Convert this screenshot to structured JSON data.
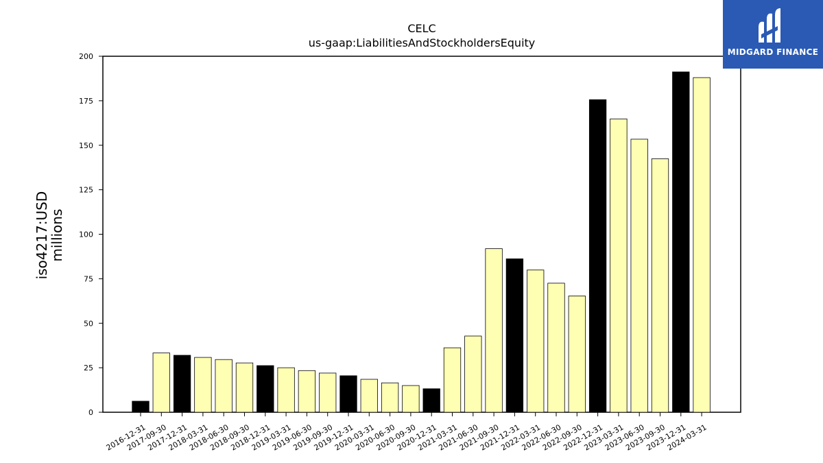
{
  "title_line1": "CELC",
  "title_line2": "us-gaap:LiabilitiesAndStockholdersEquity",
  "ylabel_line1": "iso4217:USD",
  "ylabel_line2": "millions",
  "logo_text": "MIDGARD FINANCE",
  "colors": {
    "annual_bar": "#000000",
    "quarter_bar": "#ffffb3",
    "logo_bg": "#2a5ab4"
  },
  "chart_data": {
    "type": "bar",
    "title": "CELC",
    "subtitle": "us-gaap:LiabilitiesAndStockholdersEquity",
    "ylabel": "iso4217:USD millions",
    "ylim": [
      0,
      200
    ],
    "yticks": [
      0,
      25,
      50,
      75,
      100,
      125,
      150,
      175,
      200
    ],
    "categories": [
      "2016-12-31",
      "2017-09-30",
      "2017-12-31",
      "2018-03-31",
      "2018-06-30",
      "2018-09-30",
      "2018-12-31",
      "2019-03-31",
      "2019-06-30",
      "2019-09-30",
      "2019-12-31",
      "2020-03-31",
      "2020-06-30",
      "2020-09-30",
      "2020-12-31",
      "2021-03-31",
      "2021-06-30",
      "2021-09-30",
      "2021-12-31",
      "2022-03-31",
      "2022-06-30",
      "2022-09-30",
      "2022-12-31",
      "2023-03-31",
      "2023-06-30",
      "2023-09-30",
      "2023-12-31",
      "2024-03-31"
    ],
    "values": [
      6.2,
      33.3,
      32.0,
      30.8,
      29.6,
      27.7,
      26.2,
      25.0,
      23.4,
      22.0,
      20.5,
      18.5,
      16.5,
      15.0,
      13.2,
      36.2,
      42.8,
      91.9,
      86.2,
      79.9,
      72.5,
      65.3,
      175.6,
      164.8,
      153.4,
      142.4,
      191.2,
      188.0
    ],
    "annual": [
      true,
      false,
      true,
      false,
      false,
      false,
      true,
      false,
      false,
      false,
      true,
      false,
      false,
      false,
      true,
      false,
      false,
      false,
      true,
      false,
      false,
      false,
      true,
      false,
      false,
      false,
      true,
      false
    ]
  }
}
